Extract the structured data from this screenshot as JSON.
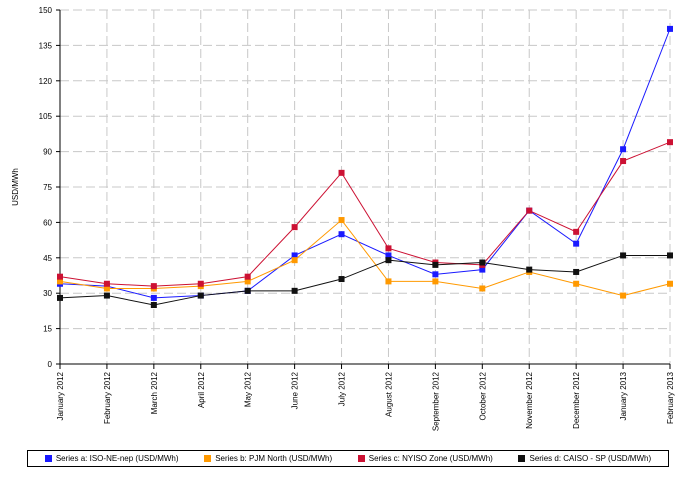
{
  "chart_data": {
    "type": "line",
    "ylabel": "USD/MWh",
    "xlabel": "",
    "title": "",
    "ylim": [
      0,
      150
    ],
    "yticks": [
      0,
      15,
      30,
      45,
      60,
      75,
      90,
      105,
      120,
      135,
      150
    ],
    "grid": true,
    "legend_position": "bottom",
    "categories": [
      "January 2012",
      "February 2012",
      "March 2012",
      "April 2012",
      "May 2012",
      "June 2012",
      "July 2012",
      "August 2012",
      "September 2012",
      "October 2012",
      "November 2012",
      "December 2012",
      "January 2013",
      "February 2013"
    ],
    "series": [
      {
        "name": "Series a: ISO-NE-nep (USD/MWh)",
        "color": "#1a1aff",
        "values": [
          34,
          33,
          28,
          29,
          31,
          46,
          55,
          46,
          38,
          40,
          65,
          51,
          91,
          142
        ]
      },
      {
        "name": "Series b: PJM North (USD/MWh)",
        "color": "#ff9900",
        "values": [
          35,
          32,
          32,
          33,
          35,
          44,
          61,
          35,
          35,
          32,
          39,
          34,
          29,
          34
        ]
      },
      {
        "name": "Series c: NYISO Zone (USD/MWh)",
        "color": "#cc1133",
        "values": [
          37,
          34,
          33,
          34,
          37,
          58,
          81,
          49,
          43,
          42,
          65,
          56,
          86,
          94
        ]
      },
      {
        "name": "Series d: CAISO - SP (USD/MWh)",
        "color": "#111111",
        "values": [
          28,
          29,
          25,
          29,
          31,
          31,
          36,
          44,
          42,
          43,
          40,
          39,
          46,
          46
        ]
      }
    ]
  }
}
